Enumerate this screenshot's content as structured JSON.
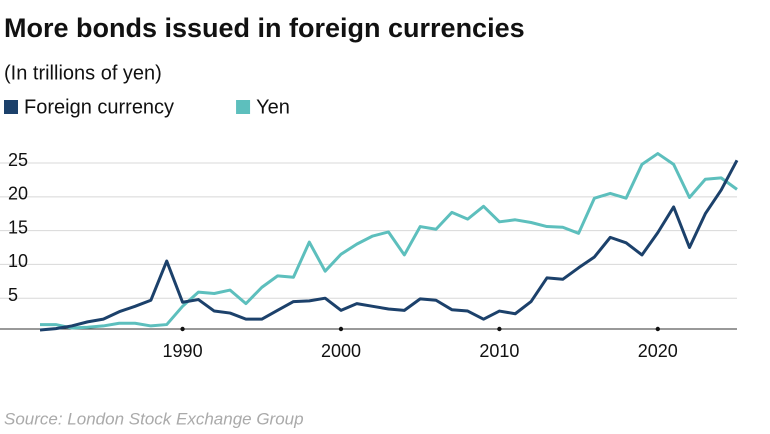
{
  "chart_data": {
    "type": "line",
    "title": "More bonds issued in foreign currencies",
    "subtitle": "(In trillions of yen)",
    "source": "Source: London Stock Exchange Group",
    "x": [
      1981,
      1982,
      1983,
      1984,
      1985,
      1986,
      1987,
      1988,
      1989,
      1990,
      1991,
      1992,
      1993,
      1994,
      1995,
      1996,
      1997,
      1998,
      1999,
      2000,
      2001,
      2002,
      2003,
      2004,
      2005,
      2006,
      2007,
      2008,
      2009,
      2010,
      2011,
      2012,
      2013,
      2014,
      2015,
      2016,
      2017,
      2018,
      2019,
      2020,
      2021,
      2022,
      2023,
      2024,
      2025
    ],
    "series": [
      {
        "name": "Foreign currency",
        "color": "#1c416b",
        "values": [
          0.3,
          0.5,
          0.9,
          1.5,
          1.9,
          3.0,
          3.8,
          4.7,
          10.5,
          4.4,
          4.8,
          3.1,
          2.8,
          1.9,
          1.9,
          3.2,
          4.5,
          4.6,
          5.0,
          3.2,
          4.2,
          3.8,
          3.4,
          3.2,
          4.9,
          4.7,
          3.3,
          3.1,
          1.9,
          3.1,
          2.7,
          4.5,
          8.0,
          7.8,
          9.5,
          11.1,
          14.0,
          13.2,
          11.4,
          14.7,
          18.5,
          12.5,
          17.5,
          21.0,
          25.4
        ]
      },
      {
        "name": "Yen",
        "color": "#5dbfbd",
        "values": [
          1.1,
          1.1,
          0.6,
          0.7,
          0.9,
          1.3,
          1.3,
          0.9,
          1.1,
          3.8,
          5.9,
          5.7,
          6.2,
          4.2,
          6.6,
          8.3,
          8.1,
          13.3,
          9.0,
          11.5,
          13.0,
          14.2,
          14.8,
          11.4,
          15.6,
          15.2,
          17.7,
          16.7,
          18.6,
          16.3,
          16.6,
          16.2,
          15.6,
          15.5,
          14.6,
          19.8,
          20.5,
          19.8,
          24.8,
          26.4,
          24.8,
          19.9,
          22.6,
          22.8,
          21.1
        ]
      }
    ],
    "xlim": [
      1981,
      2025
    ],
    "xticks": [
      1990,
      2000,
      2010,
      2020
    ],
    "ylim": [
      0,
      27
    ],
    "yticks": [
      5,
      10,
      15,
      20,
      25
    ],
    "grid": true
  }
}
